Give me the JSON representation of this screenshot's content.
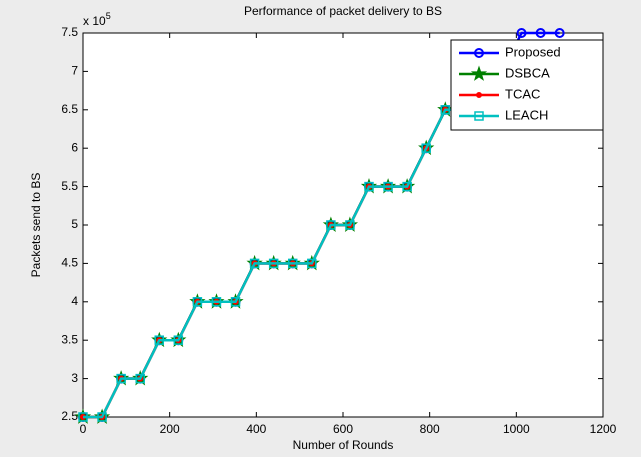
{
  "chart_data": {
    "type": "line",
    "title": "Performance of packet delivery to BS",
    "xlabel": "Number of Rounds",
    "ylabel": "Packets send to BS",
    "y_multiplier_base": "x 10",
    "y_multiplier_exponent": "5",
    "x": [
      0,
      44,
      88,
      132,
      176,
      220,
      264,
      308,
      352,
      396,
      440,
      484,
      528,
      572,
      616,
      660,
      704,
      748,
      792,
      836,
      880,
      924,
      968,
      1012,
      1056,
      1100
    ],
    "series": [
      {
        "name": "Proposed",
        "color": "#0000ff",
        "marker": "circle",
        "values": [
          2.5,
          2.5,
          3.0,
          3.0,
          3.5,
          3.5,
          4.0,
          4.0,
          4.0,
          4.5,
          4.5,
          4.5,
          4.5,
          5.0,
          5.0,
          5.5,
          5.5,
          5.5,
          6.0,
          6.5,
          6.5,
          7.0,
          7.0,
          7.5,
          7.5,
          7.5
        ]
      },
      {
        "name": "DSBCA",
        "color": "#008000",
        "marker": "star",
        "values": [
          2.5,
          2.5,
          3.0,
          3.0,
          3.5,
          3.5,
          4.0,
          4.0,
          4.0,
          4.5,
          4.5,
          4.5,
          4.5,
          5.0,
          5.0,
          5.5,
          5.5,
          5.5,
          6.0,
          6.5,
          6.5,
          7.0,
          7.0,
          7.0,
          7.0,
          7.0
        ]
      },
      {
        "name": "TCAC",
        "color": "#ff0000",
        "marker": "dot",
        "values": [
          2.5,
          2.5,
          3.0,
          3.0,
          3.5,
          3.5,
          4.0,
          4.0,
          4.0,
          4.5,
          4.5,
          4.5,
          4.5,
          5.0,
          5.0,
          5.5,
          5.5,
          5.5,
          6.0,
          6.5,
          6.5,
          7.0,
          7.0,
          7.0,
          7.0,
          7.0
        ]
      },
      {
        "name": "LEACH",
        "color": "#00c0c0",
        "marker": "square",
        "values": [
          2.5,
          2.5,
          3.0,
          3.0,
          3.5,
          3.5,
          4.0,
          4.0,
          4.0,
          4.5,
          4.5,
          4.5,
          4.5,
          5.0,
          5.0,
          5.5,
          5.5,
          5.5,
          6.0,
          6.5,
          6.5,
          7.0,
          7.0,
          7.0,
          7.0,
          7.0
        ]
      }
    ],
    "xlim": [
      0,
      1200
    ],
    "xticks": [
      0,
      200,
      400,
      600,
      800,
      1000,
      1200
    ],
    "ylim": [
      2.5,
      7.5
    ],
    "yticks": [
      2.5,
      3,
      3.5,
      4,
      4.5,
      5,
      5.5,
      6,
      6.5,
      7,
      7.5
    ],
    "grid": false,
    "legend": "top-right"
  }
}
